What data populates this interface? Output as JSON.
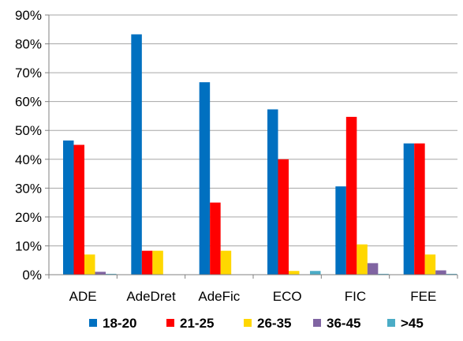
{
  "chart_data": {
    "type": "bar",
    "categories": [
      "ADE",
      "AdeDret",
      "AdeFic",
      "ECO",
      "FIC",
      "FEE"
    ],
    "series": [
      {
        "name": "18-20",
        "color": "#0070C0",
        "values": [
          46.5,
          83.3,
          66.7,
          57.3,
          30.6,
          45.5
        ]
      },
      {
        "name": "21-25",
        "color": "#FF0000",
        "values": [
          45.0,
          8.3,
          25.0,
          40.0,
          54.7,
          45.5
        ]
      },
      {
        "name": "26-35",
        "color": "#FFD700",
        "values": [
          7.0,
          8.3,
          8.3,
          1.3,
          10.5,
          7.0
        ]
      },
      {
        "name": "36-45",
        "color": "#8064A2",
        "values": [
          1.0,
          0,
          0,
          0,
          4.0,
          1.5
        ]
      },
      {
        "name": ">45",
        "color": "#4BACC6",
        "values": [
          0.3,
          0,
          0,
          1.3,
          0.3,
          0.3
        ]
      }
    ],
    "y_ticks": [
      "0%",
      "10%",
      "20%",
      "30%",
      "40%",
      "50%",
      "60%",
      "70%",
      "80%",
      "90%"
    ],
    "ylim": [
      0,
      90
    ],
    "grid": true,
    "legend_position": "bottom"
  }
}
